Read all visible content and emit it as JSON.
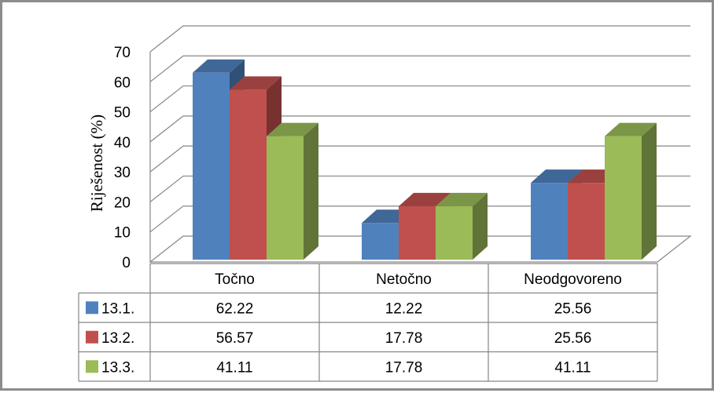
{
  "chart_data": {
    "type": "bar",
    "style": "3d-clustered-column-with-data-table",
    "categories": [
      "Točno",
      "Netočno",
      "Neodgovoreno"
    ],
    "series": [
      {
        "name": "13.1.",
        "values": [
          62.22,
          12.22,
          25.56
        ],
        "color": "#4F81BD"
      },
      {
        "name": "13.2.",
        "values": [
          56.57,
          17.78,
          25.56
        ],
        "color": "#C0504D"
      },
      {
        "name": "13.3.",
        "values": [
          41.11,
          17.78,
          41.11
        ],
        "color": "#9BBB59"
      }
    ],
    "ylabel": "Riješenost (%)",
    "xlabel": "",
    "ylim": [
      0,
      70
    ],
    "yticks": [
      0,
      10,
      20,
      30,
      40,
      50,
      60,
      70
    ],
    "grid": true,
    "legend": "data-table"
  }
}
